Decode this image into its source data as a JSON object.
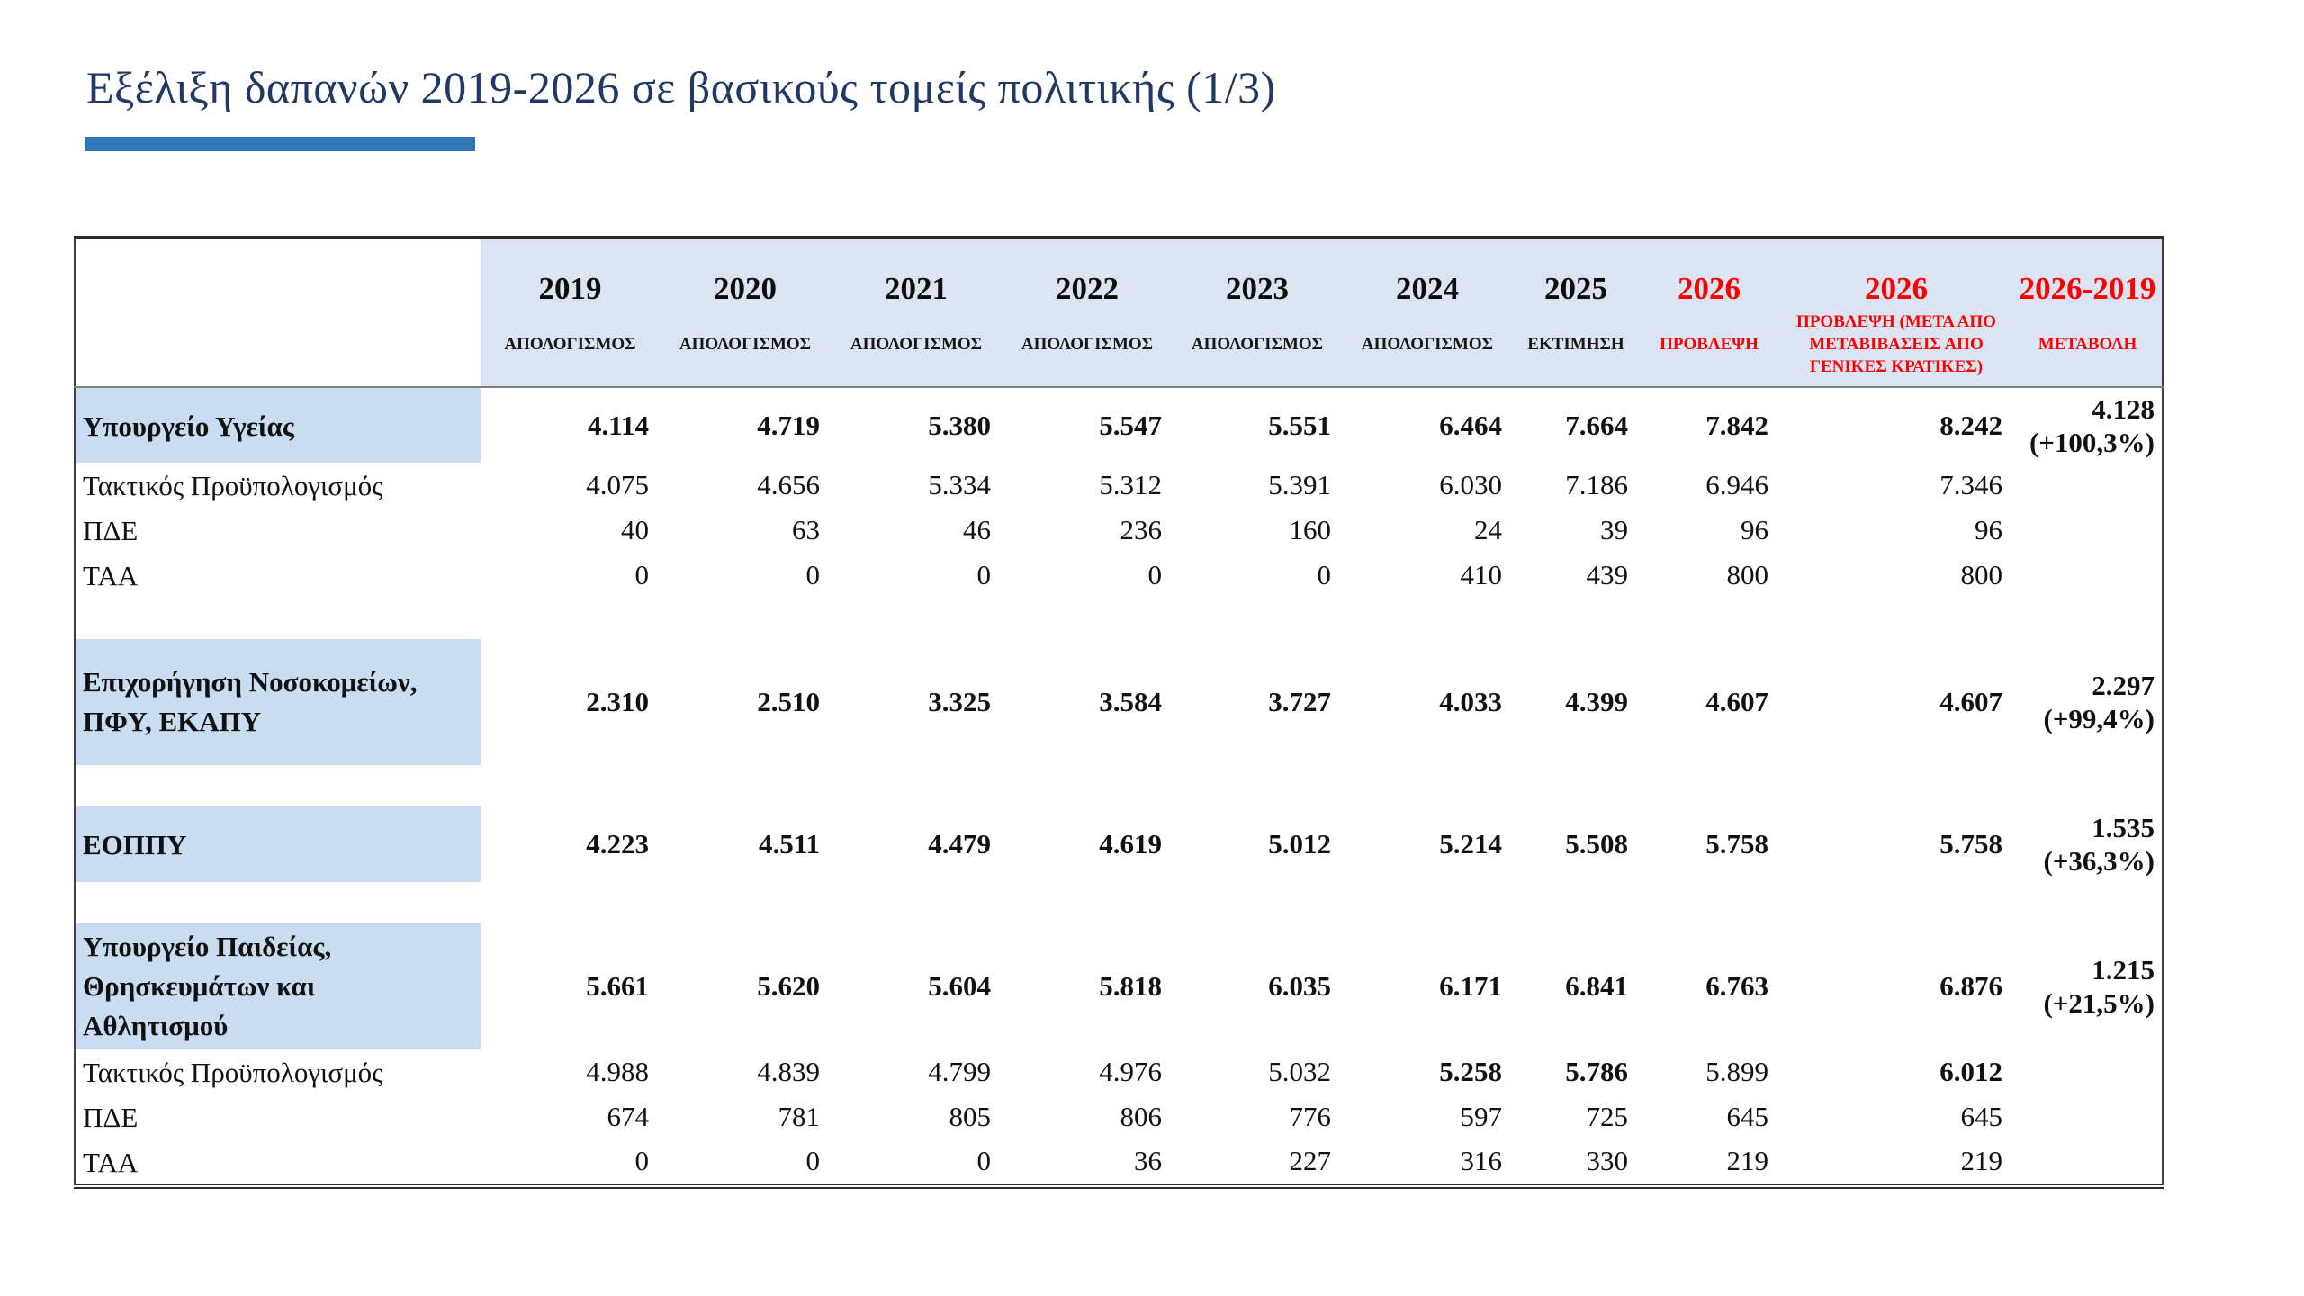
{
  "slide": {
    "title": "Εξέλιξη δαπανών 2019-2026 σε βασικούς τομείς πολιτικής (1/3)"
  },
  "colors": {
    "title_text": "#1f3864",
    "accent_bar": "#2e75b6",
    "table_header_bg": "#dce3f2",
    "section_label_bg": "#c9dcf2",
    "forecast_red": "#ff0000",
    "table_border": "#3f3f3f"
  },
  "table": {
    "columns": [
      {
        "year": "",
        "sub": "",
        "red": false
      },
      {
        "year": "2019",
        "sub": "ΑΠΟΛΟΓΙΣΜΟΣ",
        "red": false
      },
      {
        "year": "2020",
        "sub": "ΑΠΟΛΟΓΙΣΜΟΣ",
        "red": false
      },
      {
        "year": "2021",
        "sub": "ΑΠΟΛΟΓΙΣΜΟΣ",
        "red": false
      },
      {
        "year": "2022",
        "sub": "ΑΠΟΛΟΓΙΣΜΟΣ",
        "red": false
      },
      {
        "year": "2023",
        "sub": "ΑΠΟΛΟΓΙΣΜΟΣ",
        "red": false
      },
      {
        "year": "2024",
        "sub": "ΑΠΟΛΟΓΙΣΜΟΣ",
        "red": false
      },
      {
        "year": "2025",
        "sub": "ΕΚΤΙΜΗΣΗ",
        "red": false
      },
      {
        "year": "2026",
        "sub": "ΠΡΟΒΛΕΨΗ",
        "red": true
      },
      {
        "year": "2026",
        "sub": "ΠΡΟΒΛΕΨΗ (ΜΕΤΑ ΑΠΟ ΜΕΤΑΒΙΒΑΣΕΙΣ ΑΠΟ ΓΕΝΙΚΕΣ ΚΡΑΤΙΚΕΣ)",
        "red": true
      },
      {
        "year": "2026-2019",
        "sub": "ΜΕΤΑΒΟΛΗ",
        "red": true
      }
    ],
    "rows": [
      {
        "kind": "section",
        "label": "Υπουργείο Υγείας",
        "values": [
          "4.114",
          "4.719",
          "5.380",
          "5.547",
          "5.551",
          "6.464",
          "7.664",
          "7.842",
          "8.242"
        ],
        "change": {
          "value": "4.128",
          "pct": "(+100,3%)"
        }
      },
      {
        "kind": "sub",
        "label": "Τακτικός Προϋπολογισμός",
        "values": [
          "4.075",
          "4.656",
          "5.334",
          "5.312",
          "5.391",
          "6.030",
          "7.186",
          "6.946",
          "7.346"
        ]
      },
      {
        "kind": "sub",
        "label": "ΠΔΕ",
        "values": [
          "40",
          "63",
          "46",
          "236",
          "160",
          "24",
          "39",
          "96",
          "96"
        ]
      },
      {
        "kind": "sub",
        "label": "ΤΑΑ",
        "values": [
          "0",
          "0",
          "0",
          "0",
          "0",
          "410",
          "439",
          "800",
          "800"
        ]
      },
      {
        "kind": "spacer"
      },
      {
        "kind": "section",
        "label": "Επιχορήγηση Νοσοκομείων, ΠΦΥ, ΕΚΑΠΥ",
        "values": [
          "2.310",
          "2.510",
          "3.325",
          "3.584",
          "3.727",
          "4.033",
          "4.399",
          "4.607",
          "4.607"
        ],
        "change": {
          "value": "2.297",
          "pct": "(+99,4%)"
        }
      },
      {
        "kind": "spacer"
      },
      {
        "kind": "section",
        "label": "ΕΟΠΠΥ",
        "values": [
          "4.223",
          "4.511",
          "4.479",
          "4.619",
          "5.012",
          "5.214",
          "5.508",
          "5.758",
          "5.758"
        ],
        "change": {
          "value": "1.535",
          "pct": "(+36,3%)"
        }
      },
      {
        "kind": "spacer"
      },
      {
        "kind": "section",
        "label": "Υπουργείο Παιδείας, Θρησκευμάτων και Αθλητισμού",
        "values": [
          "5.661",
          "5.620",
          "5.604",
          "5.818",
          "6.035",
          "6.171",
          "6.841",
          "6.763",
          "6.876"
        ],
        "change": {
          "value": "1.215",
          "pct": "(+21,5%)"
        }
      },
      {
        "kind": "sub",
        "label": "Τακτικός Προϋπολογισμός",
        "values": [
          "4.988",
          "4.839",
          "4.799",
          "4.976",
          "5.032",
          "5.258",
          "5.786",
          "5.899",
          "6.012"
        ],
        "bold_values": [
          5,
          6,
          8
        ]
      },
      {
        "kind": "sub",
        "label": "ΠΔΕ",
        "values": [
          "674",
          "781",
          "805",
          "806",
          "776",
          "597",
          "725",
          "645",
          "645"
        ]
      },
      {
        "kind": "sub",
        "label": "ΤΑΑ",
        "values": [
          "0",
          "0",
          "0",
          "36",
          "227",
          "316",
          "330",
          "219",
          "219"
        ]
      }
    ]
  }
}
